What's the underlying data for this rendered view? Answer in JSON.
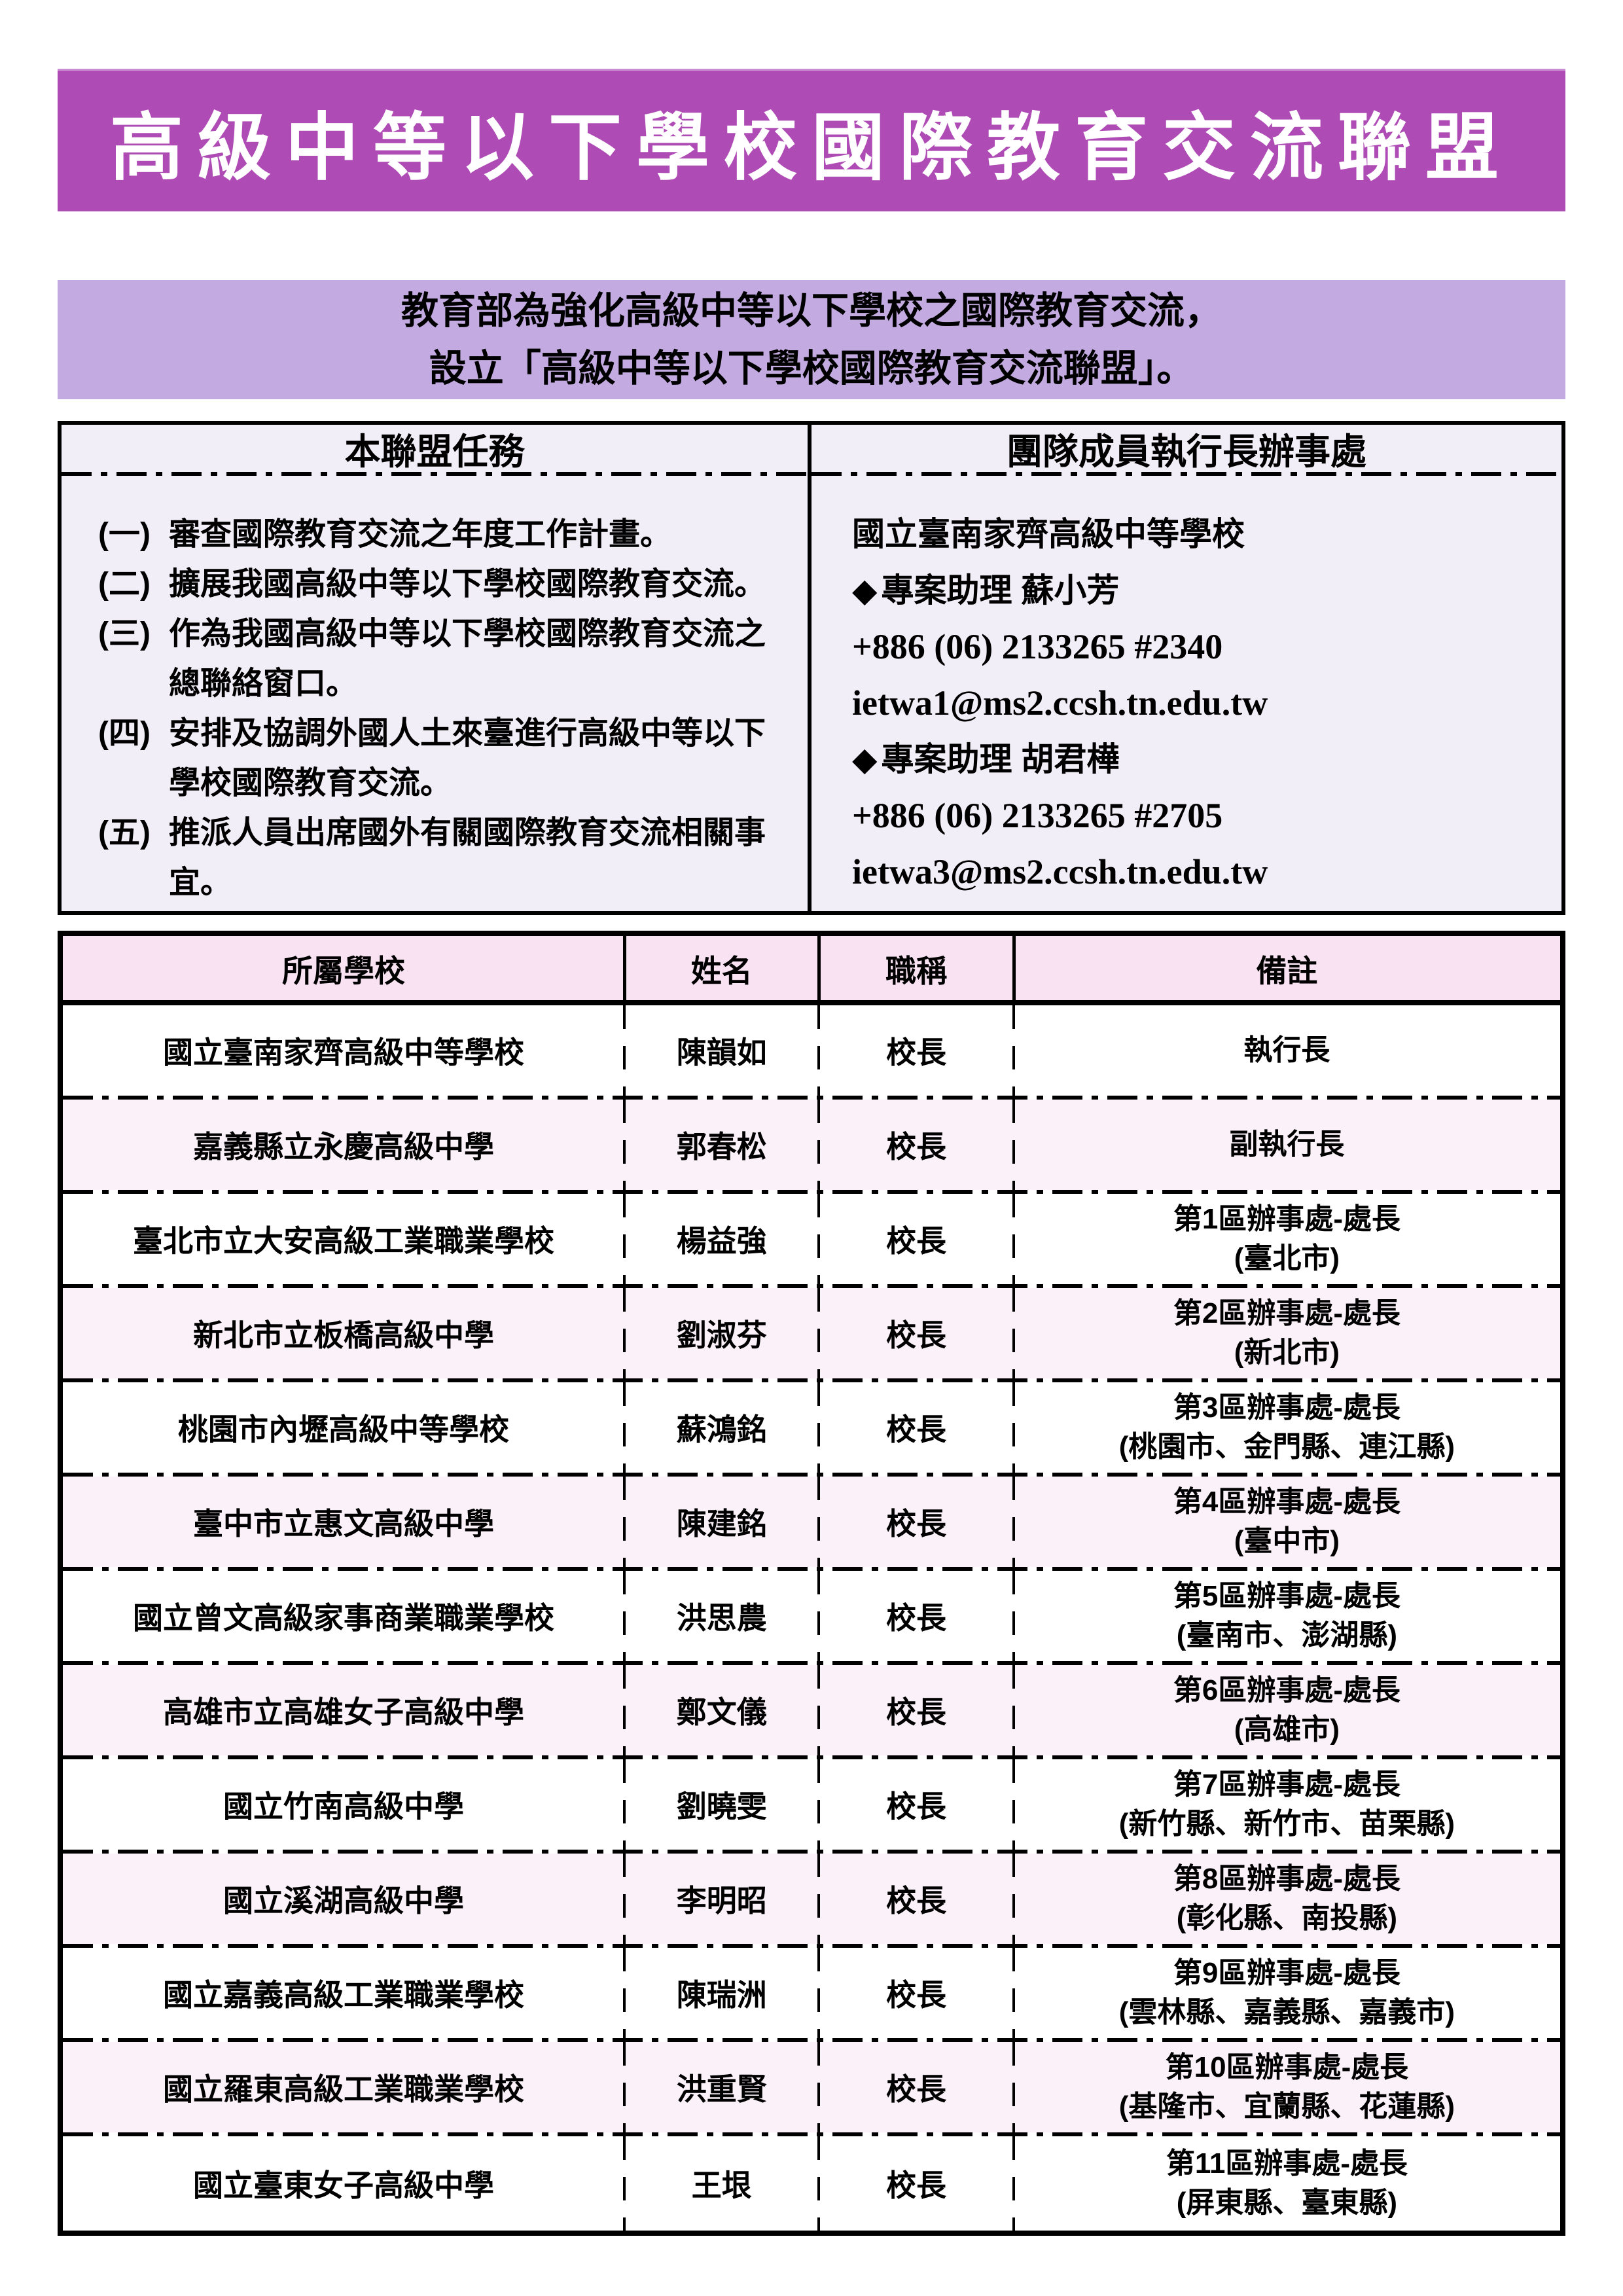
{
  "header": {
    "title": "高級中等以下學校國際教育交流聯盟",
    "banner_color": "#AF4BB5",
    "title_color": "#FFFFFF"
  },
  "intro": {
    "line1": "教育部為強化高級中等以下學校之國際教育交流，",
    "line2": "設立「高級中等以下學校國際教育交流聯盟」。",
    "bg_color": "#C3ABE1"
  },
  "tasks": {
    "heading": "本聯盟任務",
    "items": [
      {
        "marker": "(一)",
        "text": "審查國際教育交流之年度工作計畫。"
      },
      {
        "marker": "(二)",
        "text": "擴展我國高級中等以下學校國際教育交流。"
      },
      {
        "marker": "(三)",
        "text": "作為我國高級中等以下學校國際教育交流之總聯絡窗口。"
      },
      {
        "marker": "(四)",
        "text": "安排及協調外國人土來臺進行高級中等以下學校國際教育交流。"
      },
      {
        "marker": "(五)",
        "text": "推派人員出席國外有關國際教育交流相關事宜。"
      }
    ]
  },
  "office": {
    "heading": "團隊成員執行長辦事處",
    "school": "國立臺南家齊高級中等學校",
    "bullet_glyph": "◆",
    "contacts": [
      {
        "role": "專案助理 蘇小芳",
        "phone": "+886 (06) 2133265 #2340",
        "email": "ietwa1@ms2.ccsh.tn.edu.tw"
      },
      {
        "role": "專案助理 胡君樺",
        "phone": "+886 (06) 2133265 #2705",
        "email": "ietwa3@ms2.ccsh.tn.edu.tw"
      }
    ]
  },
  "table": {
    "headers": {
      "school": "所屬學校",
      "name": "姓名",
      "title": "職稱",
      "note": "備註"
    },
    "header_bg": "#F9E3F3",
    "alt_row_bg": "#FBF2F9",
    "rows": [
      {
        "school": "國立臺南家齊高級中等學校",
        "name": "陳韻如",
        "title": "校長",
        "note1": "執行長"
      },
      {
        "school": "嘉義縣立永慶高級中學",
        "name": "郭春松",
        "title": "校長",
        "note1": "副執行長"
      },
      {
        "school": "臺北市立大安高級工業職業學校",
        "name": "楊益強",
        "title": "校長",
        "note1": "第1區辦事處-處長",
        "note2": "(臺北市)"
      },
      {
        "school": "新北市立板橋高級中學",
        "name": "劉淑芬",
        "title": "校長",
        "note1": "第2區辦事處-處長",
        "note2": "(新北市)"
      },
      {
        "school": "桃園市內壢高級中等學校",
        "name": "蘇鴻銘",
        "title": "校長",
        "note1": "第3區辦事處-處長",
        "note2": "(桃園市、金門縣、連江縣)"
      },
      {
        "school": "臺中市立惠文高級中學",
        "name": "陳建銘",
        "title": "校長",
        "note1": "第4區辦事處-處長",
        "note2": "(臺中市)"
      },
      {
        "school": "國立曾文高級家事商業職業學校",
        "name": "洪思農",
        "title": "校長",
        "note1": "第5區辦事處-處長",
        "note2": "(臺南市、澎湖縣)"
      },
      {
        "school": "高雄市立高雄女子高級中學",
        "name": "鄭文儀",
        "title": "校長",
        "note1": "第6區辦事處-處長",
        "note2": "(高雄市)"
      },
      {
        "school": "國立竹南高級中學",
        "name": "劉曉雯",
        "title": "校長",
        "note1": "第7區辦事處-處長",
        "note2": "(新竹縣、新竹市、苗栗縣)"
      },
      {
        "school": "國立溪湖高級中學",
        "name": "李明昭",
        "title": "校長",
        "note1": "第8區辦事處-處長",
        "note2": "(彰化縣、南投縣)"
      },
      {
        "school": "國立嘉義高級工業職業學校",
        "name": "陳瑞洲",
        "title": "校長",
        "note1": "第9區辦事處-處長",
        "note2": "(雲林縣、嘉義縣、嘉義市)"
      },
      {
        "school": "國立羅東高級工業職業學校",
        "name": "洪重賢",
        "title": "校長",
        "note1": "第10區辦事處-處長",
        "note2": "(基隆市、宜蘭縣、花蓮縣)"
      },
      {
        "school": "國立臺東女子高級中學",
        "name": "王垠",
        "title": "校長",
        "note1": "第11區辦事處-處長",
        "note2": "(屏東縣、臺東縣)"
      }
    ]
  }
}
